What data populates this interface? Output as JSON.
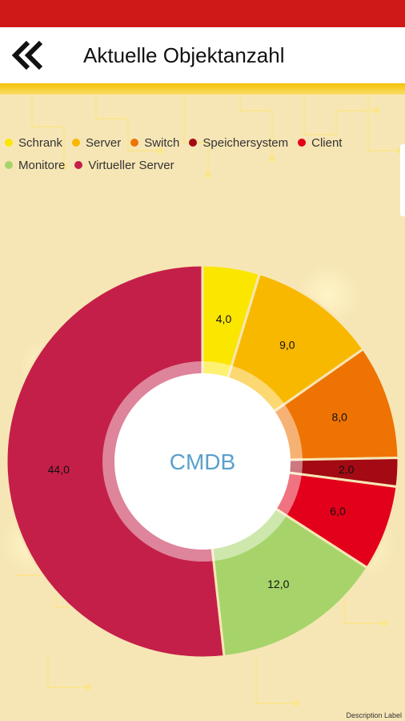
{
  "header": {
    "title": "Aktuelle Objektanzahl",
    "back_icon": "double-chevron-left-icon"
  },
  "colors": {
    "status_bar": "#cf1818",
    "accent_gold": "#f5c200",
    "background": "#f7e6b5"
  },
  "chart_data": {
    "type": "pie",
    "center_label": "CMDB",
    "legend_position": "top-left",
    "categories": [
      "Schrank",
      "Server",
      "Switch",
      "Speichersystem",
      "Client",
      "Monitore",
      "Virtueller Server"
    ],
    "values": [
      4.0,
      9.0,
      8.0,
      2.0,
      6.0,
      12.0,
      44.0
    ],
    "value_labels": [
      "4,0",
      "9,0",
      "8,0",
      "2,0",
      "6,0",
      "12,0",
      "44,0"
    ],
    "colors": [
      "#fbe600",
      "#f9b800",
      "#ee7303",
      "#a30a14",
      "#e3001b",
      "#a6d46a",
      "#c41f49"
    ],
    "description": "Description Label"
  }
}
